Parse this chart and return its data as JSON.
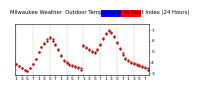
{
  "title": "Milwaukee Weather  Outdoor Temperature vs Heat Index (24 Hours)",
  "title_fontsize": 3.8,
  "background_color": "#ffffff",
  "plot_bg_color": "#ffffff",
  "grid_color": "#888888",
  "x_hours": [
    0,
    1,
    2,
    3,
    4,
    5,
    6,
    7,
    8,
    9,
    10,
    11,
    12,
    13,
    14,
    15,
    16,
    17,
    18,
    19,
    20,
    21,
    22,
    23,
    24,
    25,
    26,
    27,
    28,
    29,
    30,
    31,
    32,
    33,
    34,
    35,
    36,
    37,
    38,
    39,
    40,
    41,
    42,
    43,
    44,
    45,
    46,
    47
  ],
  "temp_values": [
    38,
    36,
    34,
    33,
    32,
    34,
    38,
    43,
    49,
    54,
    58,
    61,
    63,
    61,
    57,
    52,
    47,
    42,
    40,
    38,
    37,
    36,
    35,
    34,
    56,
    54,
    52,
    50,
    49,
    52,
    57,
    62,
    67,
    70,
    68,
    64,
    59,
    53,
    48,
    44,
    42,
    40,
    39,
    38,
    37,
    36,
    35,
    34
  ],
  "heat_values": [
    38,
    36,
    34,
    33,
    32,
    34,
    38,
    43,
    49,
    54,
    57,
    60,
    62,
    60,
    56,
    51,
    46,
    41,
    39,
    37,
    36,
    35,
    34,
    33,
    55,
    53,
    51,
    49,
    48,
    51,
    56,
    61,
    66,
    69,
    67,
    63,
    58,
    52,
    47,
    43,
    41,
    39,
    38,
    37,
    36,
    35,
    34,
    33
  ],
  "temp_color": "#ff0000",
  "heat_color": "#000000",
  "ylim": [
    28,
    75
  ],
  "xlim": [
    -0.5,
    47.5
  ],
  "tick_fontsize": 3.2,
  "legend_blue": "#0000ff",
  "legend_red": "#ff0000",
  "grid_positions": [
    0,
    6,
    12,
    18,
    24,
    30,
    36,
    42
  ],
  "x_tick_positions": [
    0,
    2,
    4,
    6,
    8,
    10,
    12,
    14,
    16,
    18,
    20,
    22,
    24,
    26,
    28,
    30,
    32,
    34,
    36,
    38,
    40,
    42,
    44,
    46
  ],
  "x_tick_labels": [
    "1",
    "3",
    "5",
    "7",
    "1",
    "3",
    "5",
    "7",
    "1",
    "3",
    "5",
    "7",
    "1",
    "3",
    "5",
    "7",
    "1",
    "3",
    "5",
    "7",
    "1",
    "3",
    "5",
    "7"
  ],
  "y_tick_positions": [
    30,
    40,
    50,
    60,
    70
  ],
  "y_tick_labels": [
    "3",
    "4",
    "5",
    "6",
    "7"
  ]
}
